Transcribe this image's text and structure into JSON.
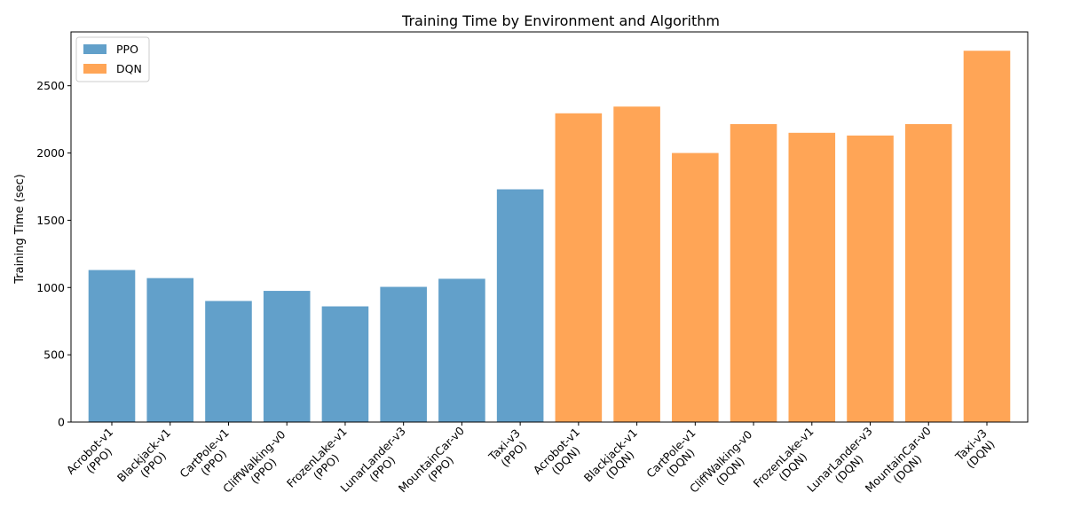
{
  "chart_data": {
    "type": "bar",
    "title": "Training Time by Environment and Algorithm",
    "xlabel": "",
    "ylabel": "Training Time (sec)",
    "ylim": [
      0,
      2900
    ],
    "yticks": [
      0,
      500,
      1000,
      1500,
      2000,
      2500
    ],
    "grid": false,
    "legend_position": "top-left",
    "categories": [
      "Acrobot-v1\n(PPO)",
      "Blackjack-v1\n(PPO)",
      "CartPole-v1\n(PPO)",
      "CliffWalking-v0\n(PPO)",
      "FrozenLake-v1\n(PPO)",
      "LunarLander-v3\n(PPO)",
      "MountainCar-v0\n(PPO)",
      "Taxi-v3\n(PPO)",
      "Acrobot-v1\n(DQN)",
      "Blackjack-v1\n(DQN)",
      "CartPole-v1\n(DQN)",
      "CliffWalking-v0\n(DQN)",
      "FrozenLake-v1\n(DQN)",
      "LunarLander-v3\n(DQN)",
      "MountainCar-v0\n(DQN)",
      "Taxi-v3\n(DQN)"
    ],
    "series": [
      {
        "name": "PPO",
        "color": "#1f77b4",
        "values": [
          1130,
          1070,
          900,
          975,
          860,
          1005,
          1065,
          1730,
          null,
          null,
          null,
          null,
          null,
          null,
          null,
          null
        ]
      },
      {
        "name": "DQN",
        "color": "#ff7f0e",
        "values": [
          null,
          null,
          null,
          null,
          null,
          null,
          null,
          null,
          2295,
          2345,
          2000,
          2215,
          2150,
          2130,
          2215,
          2760
        ]
      }
    ]
  }
}
